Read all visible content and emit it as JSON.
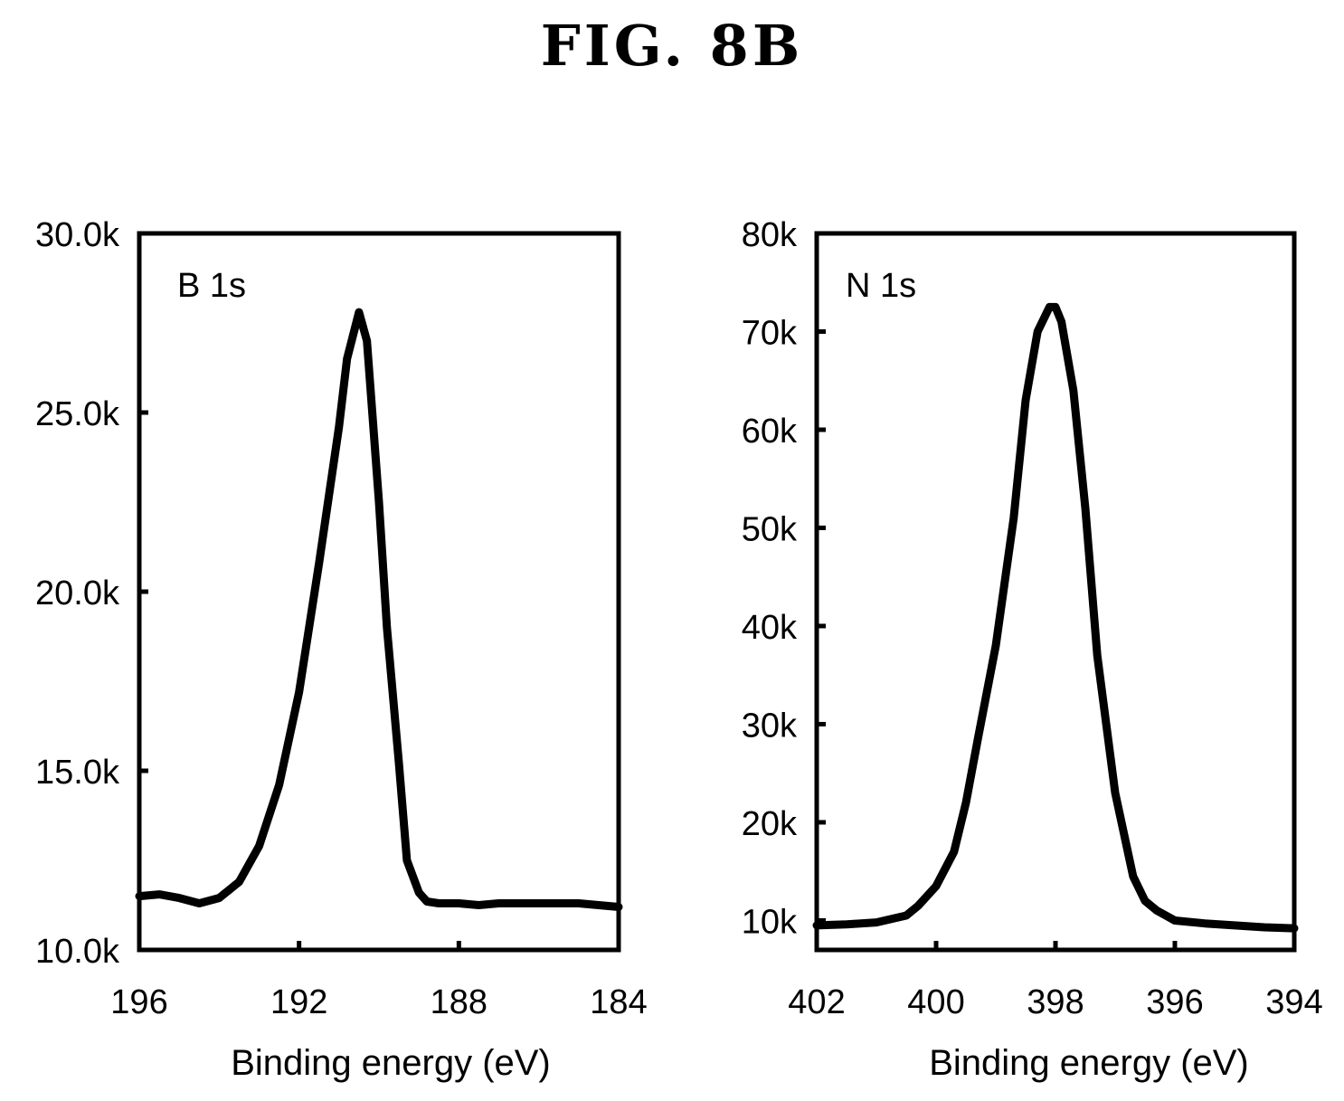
{
  "figure": {
    "title": "FIG.  8B"
  },
  "chart_data": [
    {
      "type": "line",
      "title": "",
      "annotation": "B 1s",
      "xlabel": "Binding energy (eV)",
      "ylabel": "",
      "xlim": [
        196,
        184
      ],
      "ylim": [
        10000,
        30000
      ],
      "x_reversed": true,
      "x_ticks": [
        196,
        192,
        188,
        184
      ],
      "x_tick_labels": [
        "196",
        "192",
        "188",
        "184"
      ],
      "y_ticks": [
        10000,
        15000,
        20000,
        25000,
        30000
      ],
      "y_tick_labels": [
        "10.0k",
        "15.0k",
        "20.0k",
        "25.0k",
        "30.0k"
      ],
      "grid": false,
      "series": [
        {
          "x": [
            196,
            195.5,
            195,
            194.5,
            194,
            193.5,
            193,
            192.5,
            192,
            191.5,
            191,
            190.8,
            190.5,
            190.3,
            190,
            189.8,
            189.5,
            189.3,
            189,
            188.8,
            188.5,
            188,
            187.5,
            187,
            186,
            185,
            184
          ],
          "y": [
            11500,
            11550,
            11450,
            11300,
            11450,
            11900,
            12900,
            14600,
            17200,
            20800,
            24600,
            26500,
            27800,
            27000,
            22500,
            19000,
            15200,
            12500,
            11600,
            11350,
            11300,
            11300,
            11250,
            11300,
            11300,
            11300,
            11200
          ]
        }
      ]
    },
    {
      "type": "line",
      "title": "",
      "annotation": "N 1s",
      "xlabel": "Binding energy (eV)",
      "ylabel": "",
      "xlim": [
        402,
        394
      ],
      "ylim": [
        7000,
        80000
      ],
      "x_reversed": true,
      "x_ticks": [
        402,
        400,
        398,
        396,
        394
      ],
      "x_tick_labels": [
        "402",
        "400",
        "398",
        "396",
        "394"
      ],
      "y_ticks": [
        10000,
        20000,
        30000,
        40000,
        50000,
        60000,
        70000,
        80000
      ],
      "y_tick_labels": [
        "10k",
        "20k",
        "30k",
        "40k",
        "50k",
        "60k",
        "70k",
        "80k"
      ],
      "grid": false,
      "series": [
        {
          "x": [
            402,
            401.5,
            401,
            400.5,
            400.3,
            400,
            399.7,
            399.5,
            399.3,
            399,
            398.7,
            398.5,
            398.3,
            398.1,
            398,
            397.9,
            397.7,
            397.5,
            397.3,
            397,
            396.7,
            396.5,
            396.3,
            396,
            395.5,
            395,
            394.5,
            394
          ],
          "y": [
            9500,
            9600,
            9800,
            10500,
            11500,
            13500,
            17000,
            22000,
            28500,
            38000,
            51000,
            63000,
            70000,
            72500,
            72500,
            71000,
            64000,
            52000,
            37000,
            23000,
            14500,
            12000,
            11000,
            10000,
            9700,
            9500,
            9300,
            9200
          ]
        }
      ]
    }
  ]
}
